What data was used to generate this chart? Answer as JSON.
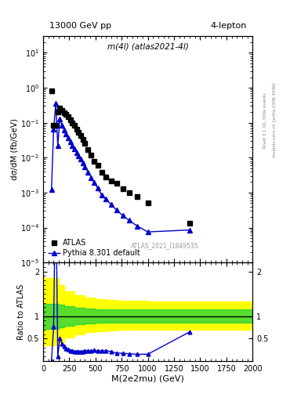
{
  "title_left": "13000 GeV pp",
  "title_right": "4-lepton",
  "plot_label": "m(4l) (atlas2021-4l)",
  "watermark": "ATLAS_2021_I1849535",
  "right_label_top": "Rivet 3.1.10, 300k events",
  "right_label_mid": "mcplots.cern.ch [arXiv:1306.3436]",
  "ylabel_main": "dσ/dM (fb/GeV)",
  "ylabel_ratio": "Ratio to ATLAS",
  "xlabel": "M(2e2mu) (GeV)",
  "xlim": [
    0,
    2000
  ],
  "ylim_main": [
    1e-05,
    30
  ],
  "ylim_ratio": [
    0.0,
    2.2
  ],
  "atlas_x": [
    80,
    100,
    120,
    140,
    160,
    180,
    200,
    220,
    240,
    260,
    280,
    300,
    320,
    340,
    360,
    380,
    400,
    430,
    460,
    490,
    520,
    560,
    600,
    650,
    700,
    760,
    820,
    900,
    1000,
    1400
  ],
  "atlas_y": [
    0.8,
    0.085,
    0.085,
    0.2,
    0.26,
    0.22,
    0.19,
    0.17,
    0.145,
    0.12,
    0.1,
    0.085,
    0.065,
    0.054,
    0.042,
    0.033,
    0.025,
    0.017,
    0.012,
    0.008,
    0.006,
    0.0038,
    0.0028,
    0.0022,
    0.0018,
    0.0013,
    0.001,
    0.00075,
    0.0005,
    0.00013
  ],
  "pythia_x": [
    80,
    100,
    120,
    140,
    160,
    180,
    200,
    220,
    240,
    260,
    280,
    300,
    320,
    340,
    360,
    380,
    400,
    430,
    460,
    490,
    520,
    560,
    600,
    650,
    700,
    760,
    820,
    900,
    1000,
    1400
  ],
  "pythia_y": [
    0.0012,
    0.065,
    0.35,
    0.022,
    0.13,
    0.085,
    0.063,
    0.047,
    0.037,
    0.028,
    0.022,
    0.018,
    0.014,
    0.011,
    0.009,
    0.007,
    0.0055,
    0.0038,
    0.0027,
    0.0019,
    0.00135,
    0.00085,
    0.00065,
    0.00045,
    0.00032,
    0.00022,
    0.00016,
    0.00011,
    7.5e-05,
    8.5e-05
  ],
  "ratio_x": [
    80,
    100,
    120,
    140,
    160,
    180,
    200,
    220,
    240,
    260,
    280,
    300,
    320,
    340,
    360,
    380,
    400,
    430,
    460,
    490,
    520,
    560,
    600,
    650,
    700,
    760,
    820,
    900,
    1000,
    1400
  ],
  "ratio_y": [
    0.0015,
    0.76,
    4.1,
    0.11,
    0.5,
    0.39,
    0.33,
    0.28,
    0.255,
    0.23,
    0.22,
    0.21,
    0.215,
    0.204,
    0.214,
    0.212,
    0.22,
    0.224,
    0.225,
    0.238,
    0.225,
    0.224,
    0.232,
    0.205,
    0.178,
    0.169,
    0.16,
    0.147,
    0.15,
    0.65
  ],
  "band_x": [
    0,
    50,
    100,
    150,
    200,
    300,
    400,
    500,
    600,
    700,
    800,
    1000,
    1200,
    1500,
    2000
  ],
  "green_lo": [
    0.72,
    0.72,
    0.72,
    0.75,
    0.78,
    0.82,
    0.84,
    0.85,
    0.86,
    0.86,
    0.86,
    0.86,
    0.86,
    0.86,
    0.86
  ],
  "green_hi": [
    1.28,
    1.28,
    1.28,
    1.25,
    1.22,
    1.18,
    1.17,
    1.16,
    1.15,
    1.15,
    1.15,
    1.15,
    1.15,
    1.15,
    1.15
  ],
  "yellow_lo": [
    0.35,
    0.35,
    0.35,
    0.42,
    0.52,
    0.6,
    0.64,
    0.67,
    0.68,
    0.69,
    0.7,
    0.7,
    0.7,
    0.7,
    0.7
  ],
  "yellow_hi": [
    1.85,
    1.85,
    1.85,
    1.7,
    1.56,
    1.46,
    1.42,
    1.38,
    1.36,
    1.35,
    1.34,
    1.33,
    1.33,
    1.33,
    1.33
  ],
  "color_atlas": "#000000",
  "color_pythia": "#0000cc",
  "color_green": "#00cc44",
  "color_yellow": "#ffff00",
  "marker_atlas": "s",
  "marker_pythia": "^"
}
